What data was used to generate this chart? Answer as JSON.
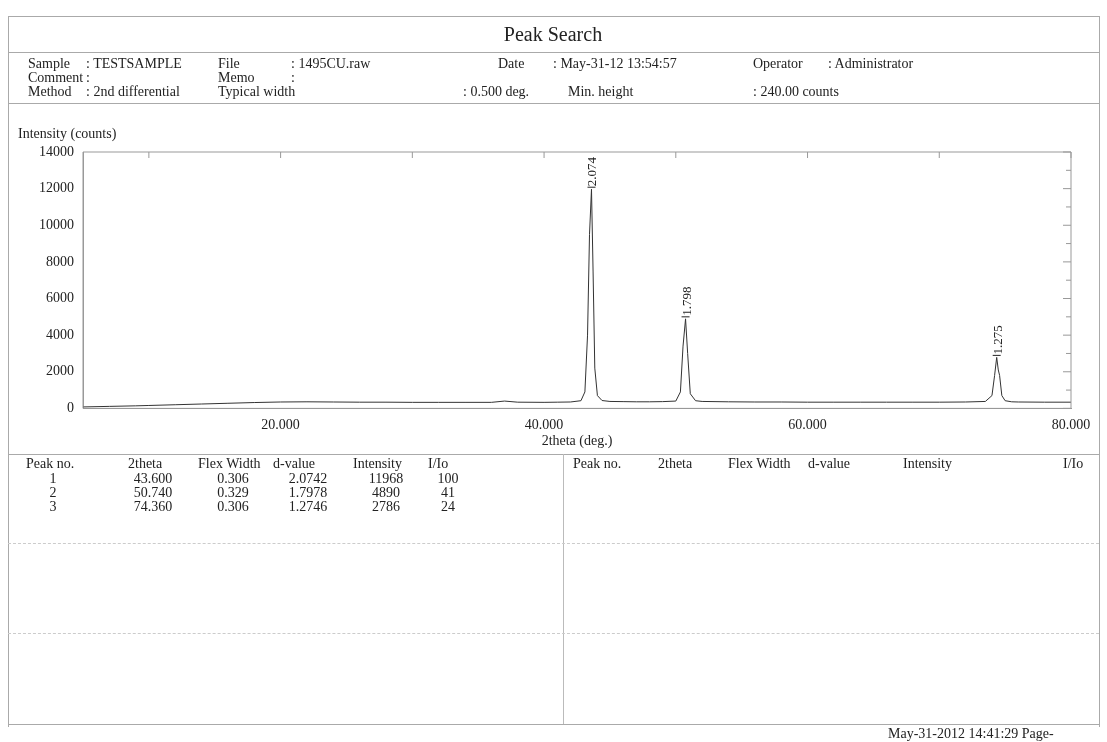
{
  "chart_data": {
    "type": "line",
    "title": "Peak Search",
    "xlabel": "2theta (deg.)",
    "ylabel": "Intensity (counts)",
    "x": [
      5,
      7,
      9,
      10,
      12,
      14,
      16,
      18,
      20,
      22,
      24,
      26,
      28,
      30,
      32,
      34,
      36,
      37,
      38,
      40,
      41,
      42,
      42.8,
      43.1,
      43.3,
      43.45,
      43.6,
      43.72,
      43.85,
      44.05,
      44.4,
      45,
      46,
      47,
      48,
      49,
      50,
      50.35,
      50.55,
      50.74,
      50.9,
      51.1,
      51.5,
      52,
      54,
      56,
      58,
      60,
      62,
      64,
      66,
      68,
      70,
      72,
      73.5,
      74.0,
      74.2,
      74.36,
      74.48,
      74.58,
      74.75,
      75.0,
      75.5,
      76,
      78,
      80
    ],
    "series": [
      {
        "color": "#333333",
        "values": [
          80,
          110,
          140,
          160,
          200,
          240,
          280,
          320,
          350,
          360,
          350,
          340,
          340,
          330,
          330,
          330,
          330,
          400,
          340,
          330,
          340,
          350,
          420,
          900,
          4000,
          9500,
          11968,
          7500,
          2200,
          700,
          430,
          380,
          370,
          360,
          360,
          370,
          400,
          900,
          3400,
          4890,
          3000,
          800,
          420,
          380,
          360,
          350,
          350,
          340,
          340,
          340,
          340,
          340,
          340,
          350,
          380,
          700,
          1800,
          2786,
          2100,
          1800,
          700,
          420,
          360,
          350,
          340,
          340
        ]
      }
    ],
    "xlim": [
      5,
      80
    ],
    "xticks": [
      {
        "value": 10,
        "label": null
      },
      {
        "value": 20,
        "label": "20.000"
      },
      {
        "value": 30,
        "label": null
      },
      {
        "value": 40,
        "label": "40.000"
      },
      {
        "value": 50,
        "label": null
      },
      {
        "value": 60,
        "label": "60.000"
      },
      {
        "value": 70,
        "label": null
      },
      {
        "value": 80,
        "label": "80.000"
      }
    ],
    "ylim": [
      0,
      14000
    ],
    "yticks": [
      0,
      {
        "value": 1000,
        "label": null
      },
      2000,
      {
        "value": 3000,
        "label": null
      },
      4000,
      {
        "value": 5000,
        "label": null
      },
      6000,
      {
        "value": 7000,
        "label": null
      },
      8000,
      {
        "value": 9000,
        "label": null
      },
      10000,
      {
        "value": 11000,
        "label": null
      },
      12000,
      {
        "value": 13000,
        "label": null
      },
      14000
    ],
    "legend": false,
    "grid": false,
    "marker": "none",
    "line_style": "solid",
    "annotations": [
      {
        "text": "2.074",
        "x": 43.6,
        "y": 11968
      },
      {
        "text": "1.798",
        "x": 50.74,
        "y": 4890
      },
      {
        "text": "1.275",
        "x": 74.36,
        "y": 2786
      },
      "Sample",
      ": TESTSAMPLE",
      "File",
      ": 1495CU.raw",
      "Date",
      ": May-31-12 13:54:57",
      "Operator",
      ": Administrator",
      "Comment",
      ":",
      "Memo",
      ":",
      "Method",
      ": 2nd differential",
      "Typical width",
      ": 0.500 deg.",
      "Min. height",
      ": 240.00 counts",
      "Peak no.",
      "2theta",
      "Flex Width",
      "d-value",
      "Intensity",
      "I/Io",
      "Peak no.",
      "2theta",
      "Flex Width",
      "d-value",
      "Intensity",
      "I/Io",
      "1",
      "43.600",
      "0.306",
      "2.0742",
      "11968",
      "100",
      "2",
      "50.740",
      "0.329",
      "1.7978",
      "4890",
      "41",
      "3",
      "74.360",
      "0.306",
      "1.2746",
      "2786",
      "24",
      "May-31-2012 14:41:29 Page-"
    ]
  }
}
